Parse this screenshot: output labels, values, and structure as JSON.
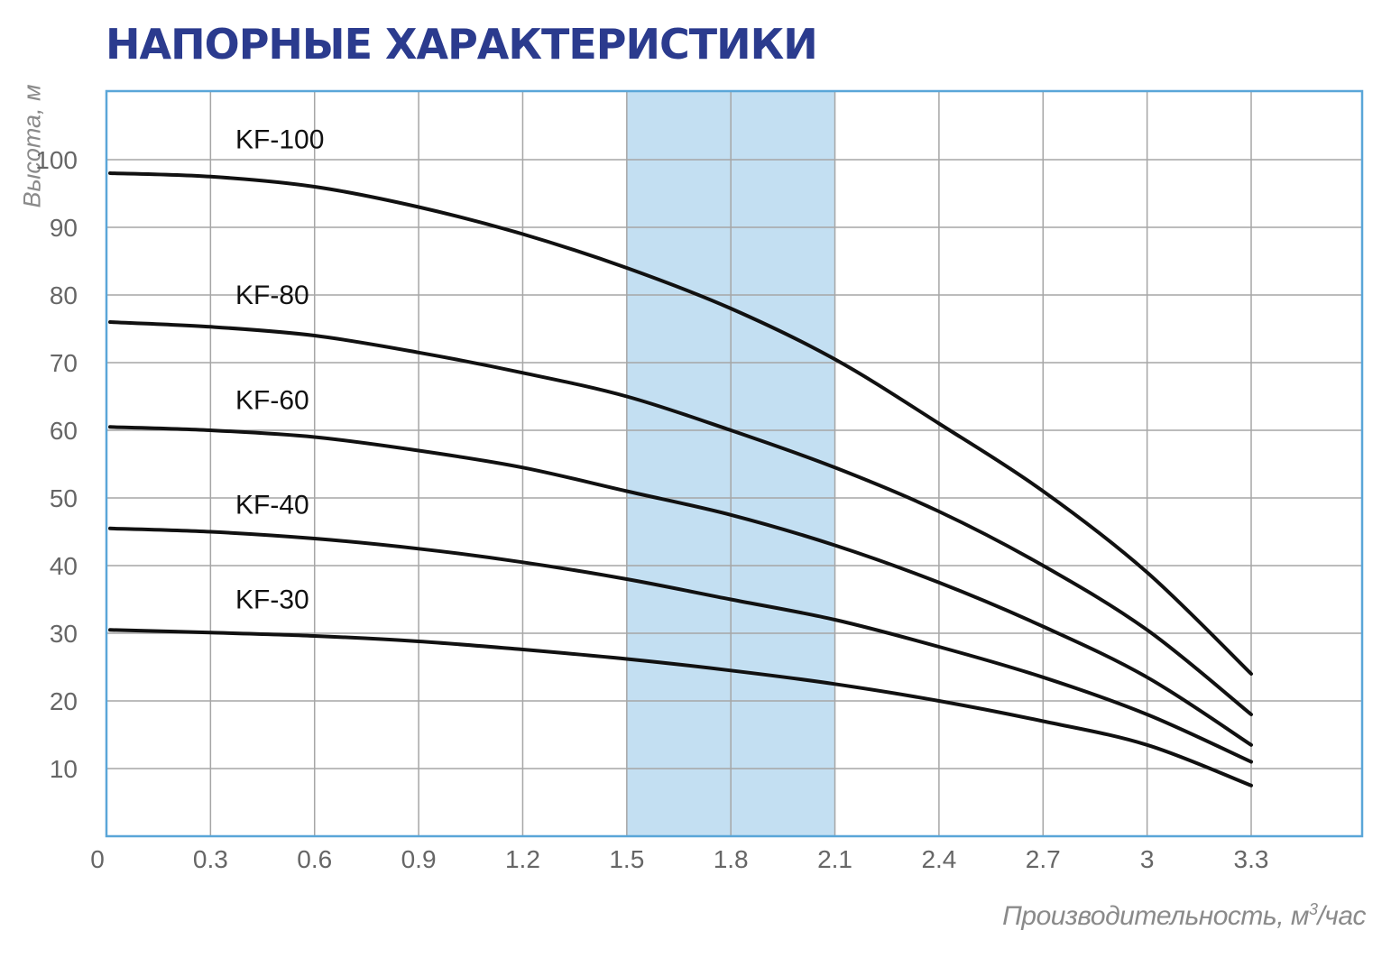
{
  "chart_data": {
    "type": "line",
    "title": "НАПОРНЫЕ ХАРАКТЕРИСТИКИ",
    "xlabel": "Производительность, м",
    "xlabel_sup": "3",
    "xlabel_suffix": "/час",
    "ylabel": "Высота, м",
    "xlim": [
      0,
      3.6
    ],
    "ylim": [
      0,
      110
    ],
    "x_ticks": [
      0,
      0.3,
      0.6,
      0.9,
      1.2,
      1.5,
      1.8,
      2.1,
      2.4,
      2.7,
      3,
      3.3
    ],
    "x_tick_labels": [
      "0",
      "0.3",
      "0.6",
      "0.9",
      "1.2",
      "1.5",
      "1.8",
      "2.1",
      "2.4",
      "2.7",
      "3",
      "3.3"
    ],
    "y_ticks": [
      10,
      20,
      30,
      40,
      50,
      60,
      70,
      80,
      90,
      100
    ],
    "y_tick_labels": [
      "10",
      "20",
      "30",
      "40",
      "50",
      "60",
      "70",
      "80",
      "90",
      "100"
    ],
    "grid": true,
    "highlight_range_x": [
      1.5,
      2.1
    ],
    "colors": {
      "title": "#2b3b8e",
      "frame": "#5aa6d8",
      "grid": "#a6a6a6",
      "highlight": "#c3dff2",
      "line": "#111111"
    },
    "series": [
      {
        "name": "KF-100",
        "label_at": [
          0.45,
          103
        ],
        "x": [
          0,
          0.3,
          0.6,
          0.9,
          1.2,
          1.5,
          1.8,
          2.1,
          2.4,
          2.7,
          3,
          3.3
        ],
        "values": [
          98,
          97.5,
          96,
          93,
          89,
          84,
          78,
          70.5,
          61,
          51,
          39,
          24
        ]
      },
      {
        "name": "KF-80",
        "label_at": [
          0.45,
          80
        ],
        "x": [
          0,
          0.3,
          0.6,
          0.9,
          1.2,
          1.5,
          1.8,
          2.1,
          2.4,
          2.7,
          3,
          3.3
        ],
        "values": [
          76,
          75.3,
          74,
          71.5,
          68.5,
          65,
          60,
          54.5,
          48,
          40,
          30.5,
          18
        ]
      },
      {
        "name": "KF-60",
        "label_at": [
          0.45,
          64.5
        ],
        "x": [
          0,
          0.3,
          0.6,
          0.9,
          1.2,
          1.5,
          1.8,
          2.1,
          2.4,
          2.7,
          3,
          3.3
        ],
        "values": [
          60.5,
          60,
          59,
          57,
          54.5,
          51,
          47.5,
          43,
          37.5,
          31,
          23.5,
          13.5
        ]
      },
      {
        "name": "KF-40",
        "label_at": [
          0.45,
          49
        ],
        "x": [
          0,
          0.3,
          0.6,
          0.9,
          1.2,
          1.5,
          1.8,
          2.1,
          2.4,
          2.7,
          3,
          3.3
        ],
        "values": [
          45.5,
          45,
          44,
          42.5,
          40.5,
          38,
          35,
          32,
          28,
          23.5,
          18,
          11
        ]
      },
      {
        "name": "KF-30",
        "label_at": [
          0.45,
          35
        ],
        "x": [
          0,
          0.3,
          0.6,
          0.9,
          1.2,
          1.5,
          1.8,
          2.1,
          2.4,
          2.7,
          3,
          3.3
        ],
        "values": [
          30.5,
          30.1,
          29.6,
          28.8,
          27.6,
          26.2,
          24.5,
          22.5,
          20,
          17,
          13.5,
          7.5
        ]
      }
    ]
  }
}
